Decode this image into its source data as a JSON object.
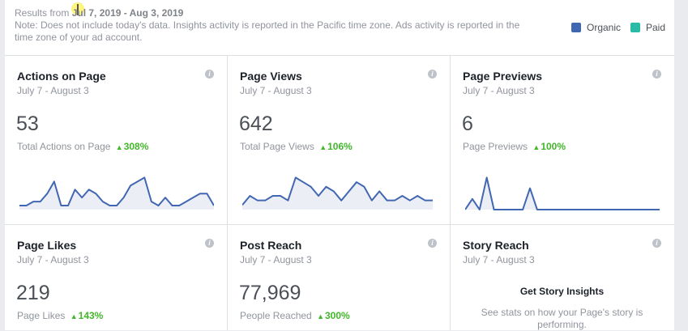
{
  "header": {
    "results_label": "Results from",
    "results_range": "Jul 7, 2019 - Aug 3, 2019",
    "note": "Note: Does not include today's data. Insights activity is reported in the Pacific time zone. Ads activity is reported in the time zone of your ad account.",
    "legend": [
      {
        "label": "Organic",
        "color": "#4267b2"
      },
      {
        "label": "Paid",
        "color": "#2abba7"
      }
    ]
  },
  "cards": [
    {
      "title": "Actions on Page",
      "date": "July 7 - August 3",
      "value": "53",
      "sub": "Total Actions on Page",
      "change": "308%"
    },
    {
      "title": "Page Views",
      "date": "July 7 - August 3",
      "value": "642",
      "sub": "Total Page Views",
      "change": "106%"
    },
    {
      "title": "Page Previews",
      "date": "July 7 - August 3",
      "value": "6",
      "sub": "Page Previews",
      "change": "100%"
    },
    {
      "title": "Page Likes",
      "date": "July 7 - August 3",
      "value": "219",
      "sub": "Page Likes",
      "change": "143%"
    },
    {
      "title": "Post Reach",
      "date": "July 7 - August 3",
      "value": "77,969",
      "sub": "People Reached",
      "change": "300%"
    },
    {
      "title": "Story Reach",
      "date": "July 7 - August 3",
      "story_heading": "Get Story Insights",
      "story_text": "See stats on how your Page's story is performing."
    }
  ],
  "info_glyph": "i",
  "trend_glyph": "▲",
  "sparklines": {
    "color": "#4267b2",
    "fill": "#eceef5",
    "actions": [
      1,
      1,
      2,
      2,
      4,
      7,
      1,
      1,
      5,
      3,
      5,
      4,
      2,
      1,
      1,
      3,
      6,
      7,
      8,
      2,
      1,
      3,
      1,
      1,
      2,
      3,
      4,
      4,
      1
    ],
    "views": [
      1,
      3,
      2,
      2,
      3,
      3,
      2,
      7,
      6,
      5,
      3,
      5,
      4,
      2,
      4,
      6,
      5,
      2,
      4,
      2,
      2,
      3,
      2,
      3,
      2,
      2
    ],
    "previews": [
      0,
      1,
      0,
      3,
      0,
      0,
      0,
      0,
      0,
      2,
      0,
      0,
      0,
      0,
      0,
      0,
      0,
      0,
      0,
      0,
      0,
      0,
      0,
      0,
      0,
      0,
      0,
      0
    ]
  }
}
